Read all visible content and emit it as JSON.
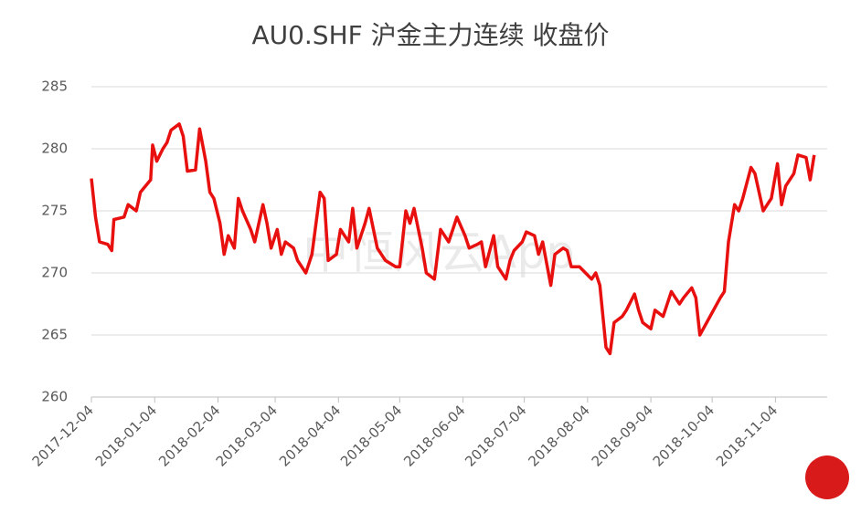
{
  "chart_data": {
    "type": "line",
    "title": "AU0.SHF 沪金主力连续 收盘价",
    "watermark": "中恒风云App",
    "x": [
      "2017-12-04",
      "2017-12-06",
      "2017-12-08",
      "2017-12-12",
      "2017-12-14",
      "2017-12-15",
      "2017-12-20",
      "2017-12-22",
      "2017-12-26",
      "2017-12-28",
      "2018-01-02",
      "2018-01-03",
      "2018-01-05",
      "2018-01-08",
      "2018-01-10",
      "2018-01-12",
      "2018-01-16",
      "2018-01-18",
      "2018-01-20",
      "2018-01-24",
      "2018-01-26",
      "2018-01-29",
      "2018-01-31",
      "2018-02-02",
      "2018-02-05",
      "2018-02-07",
      "2018-02-09",
      "2018-02-12",
      "2018-02-14",
      "2018-02-16",
      "2018-02-20",
      "2018-02-22",
      "2018-02-26",
      "2018-02-28",
      "2018-03-02",
      "2018-03-05",
      "2018-03-07",
      "2018-03-09",
      "2018-03-13",
      "2018-03-15",
      "2018-03-19",
      "2018-03-22",
      "2018-03-26",
      "2018-03-28",
      "2018-03-30",
      "2018-04-03",
      "2018-04-05",
      "2018-04-09",
      "2018-04-11",
      "2018-04-13",
      "2018-04-17",
      "2018-04-19",
      "2018-04-23",
      "2018-04-25",
      "2018-04-27",
      "2018-05-02",
      "2018-05-04",
      "2018-05-07",
      "2018-05-09",
      "2018-05-11",
      "2018-05-15",
      "2018-05-17",
      "2018-05-21",
      "2018-05-24",
      "2018-05-28",
      "2018-05-30",
      "2018-06-01",
      "2018-06-05",
      "2018-06-07",
      "2018-06-11",
      "2018-06-13",
      "2018-06-15",
      "2018-06-19",
      "2018-06-21",
      "2018-06-25",
      "2018-06-27",
      "2018-06-29",
      "2018-07-03",
      "2018-07-05",
      "2018-07-09",
      "2018-07-11",
      "2018-07-13",
      "2018-07-17",
      "2018-07-19",
      "2018-07-23",
      "2018-07-25",
      "2018-07-27",
      "2018-07-31",
      "2018-08-03",
      "2018-08-06",
      "2018-08-08",
      "2018-08-10",
      "2018-08-13",
      "2018-08-15",
      "2018-08-17",
      "2018-08-21",
      "2018-08-23",
      "2018-08-27",
      "2018-08-29",
      "2018-08-31",
      "2018-09-04",
      "2018-09-06",
      "2018-09-10",
      "2018-09-12",
      "2018-09-14",
      "2018-09-18",
      "2018-09-20",
      "2018-09-24",
      "2018-09-26",
      "2018-09-28",
      "2018-10-08",
      "2018-10-10",
      "2018-10-12",
      "2018-10-15",
      "2018-10-17",
      "2018-10-19",
      "2018-10-23",
      "2018-10-25",
      "2018-10-29",
      "2018-10-31",
      "2018-11-02",
      "2018-11-05",
      "2018-11-07",
      "2018-11-09",
      "2018-11-13",
      "2018-11-15",
      "2018-11-19",
      "2018-11-21",
      "2018-11-23"
    ],
    "series": [
      {
        "name": "收盘价",
        "color": "#e8100f",
        "values": [
          277.6,
          274.5,
          272.5,
          272.3,
          271.8,
          274.3,
          274.5,
          275.5,
          275.0,
          276.5,
          277.5,
          280.3,
          279,
          280,
          280.5,
          281.5,
          282,
          281,
          278.2,
          278.3,
          281.6,
          279,
          276.5,
          276,
          274,
          271.5,
          273,
          272,
          276,
          275,
          273.5,
          272.5,
          275.5,
          274,
          272,
          273.5,
          271.5,
          272.5,
          272,
          271,
          270,
          271.5,
          276.5,
          276,
          271,
          271.5,
          273.5,
          272.5,
          275.2,
          272,
          274,
          275.2,
          272,
          271.5,
          271,
          270.5,
          270.5,
          275,
          274,
          275.2,
          272,
          270,
          269.5,
          273.5,
          272.5,
          273.5,
          274.5,
          273,
          272,
          272.3,
          272.5,
          270.5,
          273,
          270.5,
          269.5,
          271,
          271.8,
          272.5,
          273.3,
          273,
          271.5,
          272.5,
          269,
          271.5,
          272,
          271.8,
          270.5,
          270.5,
          270,
          269.5,
          270,
          269,
          264,
          263.5,
          266,
          266.5,
          267,
          268.3,
          267,
          266,
          265.5,
          267,
          266.5,
          267.5,
          268.5,
          267.5,
          268,
          268.8,
          268,
          265,
          268,
          268.5,
          272.5,
          275.5,
          275,
          276,
          278.5,
          278,
          275,
          275.5,
          276,
          278.8,
          275.5,
          277,
          278,
          279.5,
          279.3,
          277.5,
          279.5
        ]
      }
    ],
    "xlim": [
      "2017-12-04",
      "2018-11-28"
    ],
    "xticks": [
      "2017-12-04",
      "2018-01-04",
      "2018-02-04",
      "2018-03-04",
      "2018-04-04",
      "2018-05-04",
      "2018-06-04",
      "2018-07-04",
      "2018-08-04",
      "2018-09-04",
      "2018-10-04",
      "2018-11-04"
    ],
    "ylim": [
      260,
      285
    ],
    "yticks": [
      260,
      265,
      270,
      275,
      280,
      285
    ],
    "grid": true
  }
}
